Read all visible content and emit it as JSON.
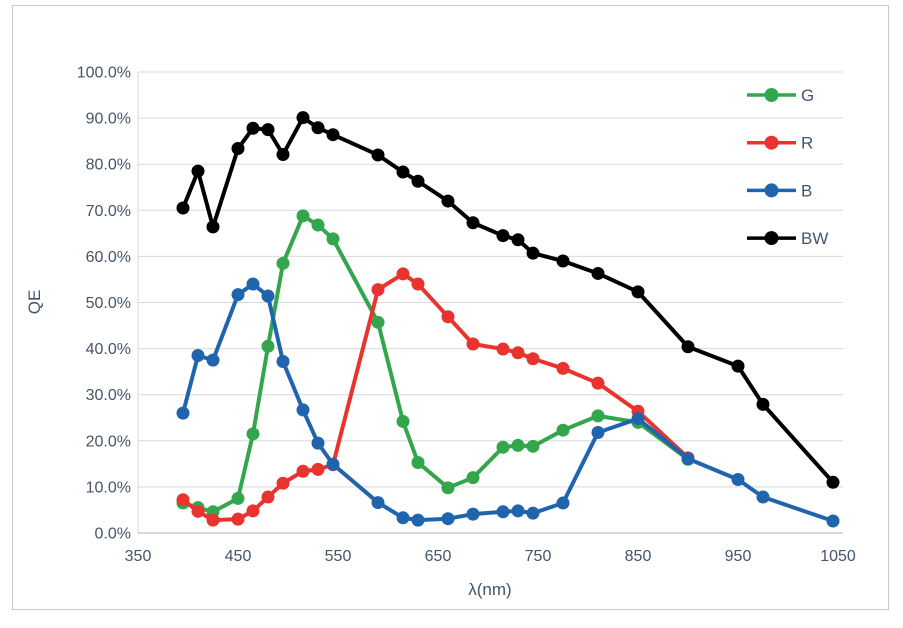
{
  "window": {
    "background": "#FFFFFF",
    "frame_border_color": "#C8C8C8"
  },
  "style": {
    "gridline_color": "#D9D9D9",
    "axis_line_color": "#BFBFBF",
    "tick_label_color": "#44546A",
    "axis_title_color": "#44546A",
    "legend_text_color": "#44546A",
    "tick_font_size": 16,
    "axis_title_font_size": 17,
    "legend_font_size": 17,
    "line_width": 4,
    "marker_radius": 6.5
  },
  "chart_data": {
    "type": "line",
    "title": "",
    "xlabel": "λ(nm)",
    "ylabel": "QE",
    "xlim": [
      350,
      1055
    ],
    "ylim": [
      0,
      100
    ],
    "grid": true,
    "legend_position": "top-right",
    "x_ticks": [
      350,
      450,
      550,
      650,
      750,
      850,
      950,
      1050
    ],
    "x_tick_labels": [
      "350",
      "450",
      "550",
      "650",
      "750",
      "850",
      "950",
      "1050"
    ],
    "y_ticks": [
      0,
      10,
      20,
      30,
      40,
      50,
      60,
      70,
      80,
      90,
      100
    ],
    "y_tick_labels": [
      "0.0%",
      "10.0%",
      "20.0%",
      "30.0%",
      "40.0%",
      "50.0%",
      "60.0%",
      "70.0%",
      "80.0%",
      "90.0%",
      "100.0%"
    ],
    "series": [
      {
        "name": "G",
        "color": "#33A64C",
        "x": [
          395,
          410,
          425,
          450,
          465,
          480,
          495,
          515,
          530,
          545,
          590,
          615,
          630,
          660,
          685,
          715,
          730,
          745,
          775,
          810,
          850,
          900
        ],
        "y": [
          6.5,
          5.5,
          4.6,
          7.5,
          21.5,
          40.5,
          58.5,
          68.8,
          66.8,
          63.8,
          45.7,
          24.2,
          15.3,
          9.8,
          12.0,
          18.6,
          19.0,
          18.8,
          22.3,
          25.4,
          24.0,
          16.0
        ]
      },
      {
        "name": "R",
        "color": "#E8332E",
        "x": [
          395,
          410,
          425,
          450,
          465,
          480,
          495,
          515,
          530,
          545,
          590,
          615,
          630,
          660,
          685,
          715,
          730,
          745,
          775,
          810,
          850,
          900
        ],
        "y": [
          7.2,
          4.7,
          2.8,
          3.0,
          4.8,
          7.8,
          10.8,
          13.4,
          13.8,
          14.8,
          52.8,
          56.2,
          54.0,
          46.9,
          41.0,
          39.9,
          39.1,
          37.8,
          35.7,
          32.5,
          26.4,
          16.3
        ]
      },
      {
        "name": "B",
        "color": "#2064AD",
        "x": [
          395,
          410,
          425,
          450,
          465,
          480,
          495,
          515,
          530,
          545,
          590,
          615,
          630,
          660,
          685,
          715,
          730,
          745,
          775,
          810,
          850,
          900,
          950,
          975,
          1045
        ],
        "y": [
          26.0,
          38.5,
          37.5,
          51.7,
          54.0,
          51.4,
          37.2,
          26.7,
          19.5,
          14.9,
          6.6,
          3.3,
          2.8,
          3.1,
          4.1,
          4.6,
          4.8,
          4.3,
          6.5,
          21.8,
          24.8,
          16.1,
          11.6,
          7.8,
          2.6
        ]
      },
      {
        "name": "BW",
        "color": "#000000",
        "x": [
          395,
          410,
          425,
          450,
          465,
          480,
          495,
          515,
          530,
          545,
          590,
          615,
          630,
          660,
          685,
          715,
          730,
          745,
          775,
          810,
          850,
          900,
          950,
          975,
          1045
        ],
        "y": [
          70.5,
          78.5,
          66.4,
          83.4,
          87.8,
          87.5,
          82.1,
          90.1,
          87.9,
          86.4,
          82.0,
          78.3,
          76.3,
          72.0,
          67.3,
          64.5,
          63.6,
          60.7,
          59.0,
          56.3,
          52.3,
          40.4,
          36.2,
          27.9,
          11.0
        ]
      }
    ],
    "legend_entries": [
      "G",
      "R",
      "B",
      "BW"
    ]
  }
}
